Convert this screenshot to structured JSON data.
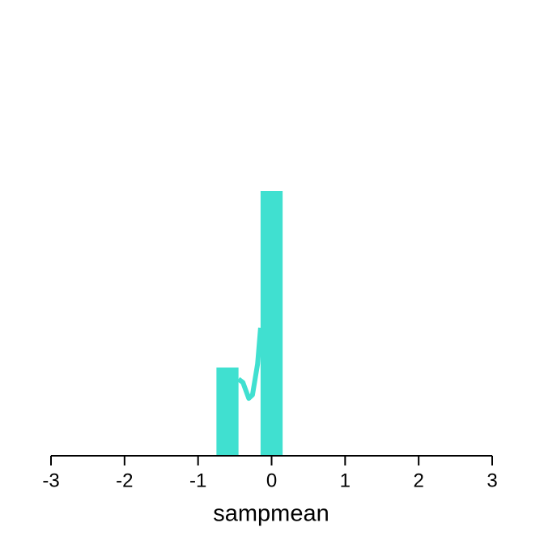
{
  "chart_data": {
    "type": "histogram",
    "x_label": "sampmean",
    "bins": [
      -0.75,
      -0.45,
      -0.15,
      0.15
    ],
    "values": [
      1,
      0,
      3
    ],
    "color": "#40e0d0",
    "xlim": [
      -3,
      3
    ],
    "xticks": [
      -3,
      -2,
      -1,
      0,
      1,
      2,
      3
    ],
    "curve": {
      "x": [
        -0.45,
        -0.39,
        -0.31,
        -0.26,
        -0.19,
        -0.15
      ],
      "y": [
        0.87,
        0.83,
        0.65,
        0.69,
        1.04,
        1.45
      ]
    }
  }
}
